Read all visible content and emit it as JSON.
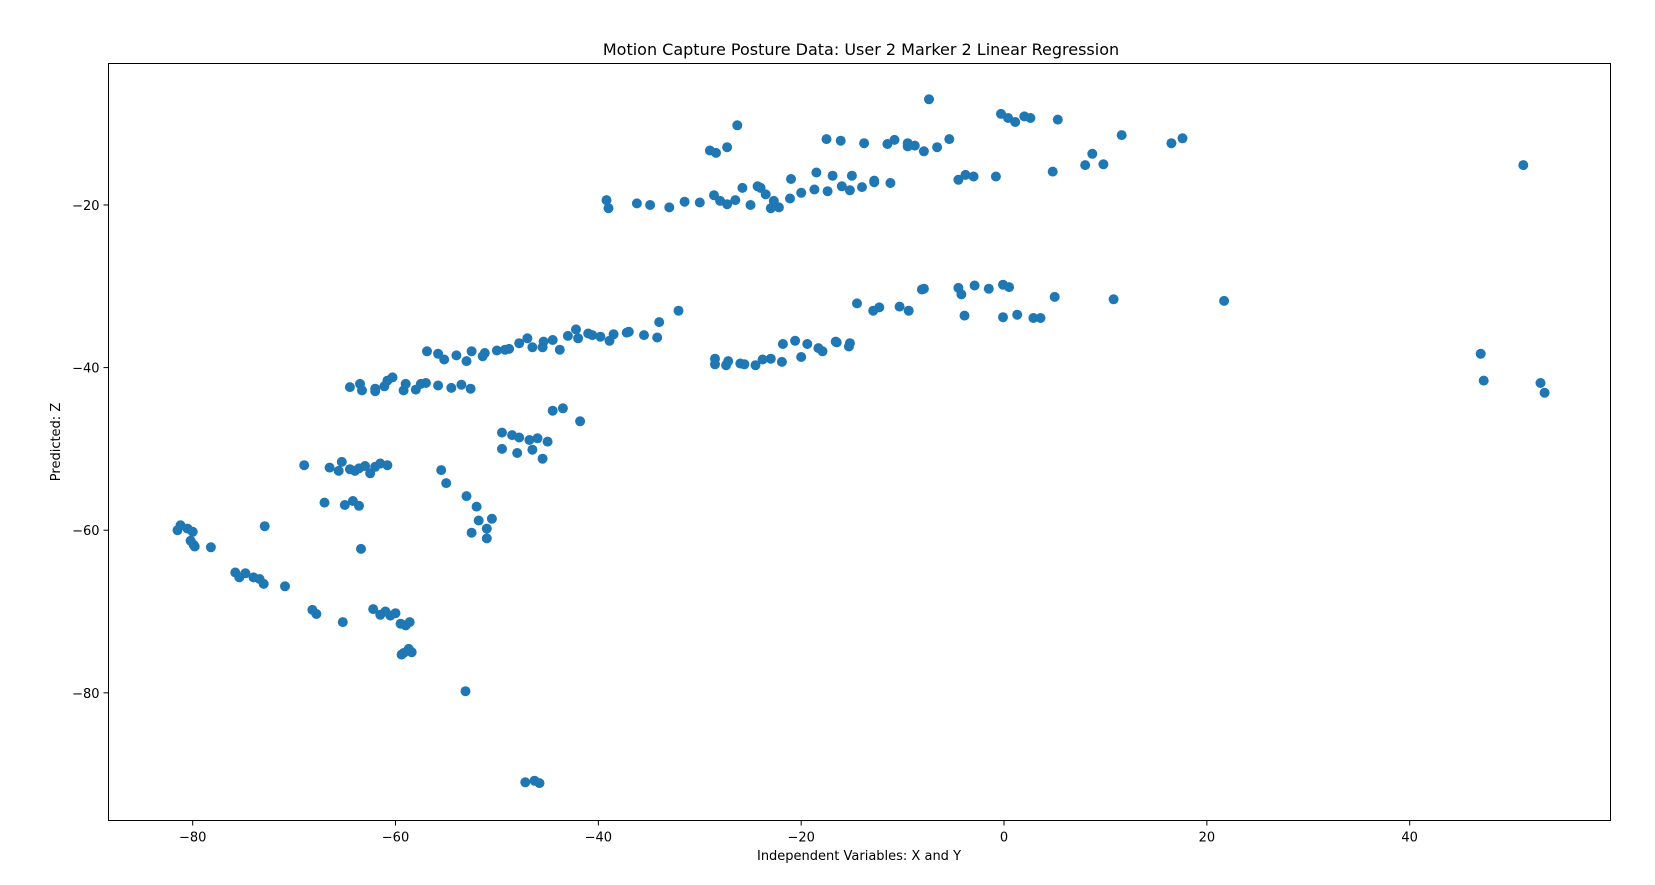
{
  "chart_data": {
    "type": "scatter",
    "title": "Motion Capture Posture Data: User 2 Marker 2 Linear Regression",
    "xlabel": "Independent Variables: X and Y",
    "ylabel": "Predicted: Z",
    "xlim": [
      -88.3,
      59.8
    ],
    "ylim": [
      -95.7,
      -2.6
    ],
    "xticks": [
      -80,
      -60,
      -40,
      -20,
      0,
      20,
      40
    ],
    "yticks": [
      -20,
      -40,
      -60,
      -80
    ],
    "xtick_labels": [
      "−80",
      "−60",
      "−40",
      "−20",
      "0",
      "20",
      "40"
    ],
    "ytick_labels": [
      "−20",
      "−40",
      "−60",
      "−80"
    ],
    "grid": false,
    "legend": false,
    "point_color": "#1f77b4",
    "series": [
      {
        "x": [
          -81.5,
          -81.2,
          -80.5,
          -80.0,
          -80.2,
          -79.8,
          -79.9,
          -78.2,
          -75.8,
          -75.4,
          -74.8,
          -74.0,
          -73.4,
          -73.0,
          -72.9,
          -70.9,
          -69.0,
          -68.2,
          -67.8,
          -67.0,
          -66.5,
          -65.6,
          -65.3,
          -64.5,
          -64.0,
          -63.6,
          -63.0,
          -62.5,
          -62.0,
          -61.5,
          -60.8,
          -63.4,
          -65.2,
          -65.0,
          -64.2,
          -63.6,
          -62.2,
          -61.5,
          -61.0,
          -60.5,
          -60.0,
          -59.5,
          -59.0,
          -58.6,
          -58.8,
          -59.2,
          -59.4,
          -58.7,
          -58.4,
          -64.5,
          -63.3,
          -62.0,
          -60.8,
          -59.2,
          -57.5,
          -55.8,
          -54.5,
          -53.5,
          -52.6,
          -63.5,
          -62.0,
          -61.1,
          -60.3,
          -59.0,
          -58.0,
          -57.0,
          -55.8,
          -55.2,
          -54.0,
          -52.5,
          -51.2,
          -50.0,
          -48.8,
          -47.8,
          -46.5,
          -45.4,
          -44.5,
          -43.0,
          -42.0,
          -41.0,
          -39.8,
          -38.5,
          -37.2,
          -35.5,
          -34.2,
          -56.9,
          -53.0,
          -51.4,
          -49.2,
          -47.0,
          -45.5,
          -43.8,
          -42.2,
          -40.6,
          -38.9,
          -37.0,
          -55.5,
          -55.0,
          -53.0,
          -52.0,
          -51.8,
          -51.0,
          -50.5,
          -52.5,
          -51.0,
          -49.5,
          -48.5,
          -47.8,
          -46.8,
          -46.0,
          -45.5,
          -45.0,
          -49.5,
          -48.0,
          -46.5,
          -44.5,
          -43.5,
          -41.8,
          -53.1,
          -47.2,
          -46.3,
          -45.8,
          -39.2,
          -39.0,
          -36.2,
          -34.9,
          -33.0,
          -31.5,
          -30.0,
          -28.6,
          -28.0,
          -27.3,
          -26.5,
          -25.8,
          -25.0,
          -24.3,
          -23.5,
          -23.0,
          -22.2,
          -21.0,
          -20.0,
          -18.5,
          -17.4,
          -16.0,
          -15.2,
          -14.0,
          -12.8,
          -29.0,
          -28.4,
          -27.3,
          -26.3,
          -17.5,
          -16.1,
          -15.0,
          -13.8,
          -11.5,
          -10.8,
          -9.5,
          -8.8,
          -7.9,
          -6.6,
          -5.4,
          -24.0,
          -22.7,
          -21.1,
          -18.7,
          -16.9,
          -12.8,
          -11.2,
          -9.5,
          -4.5,
          -3.8,
          -3.0,
          -0.8,
          -0.3,
          0.4,
          1.1,
          2.0,
          2.6,
          5.3,
          4.8,
          8.0,
          8.7,
          9.8,
          11.6,
          16.5,
          17.6,
          -34.0,
          -32.1,
          -28.5,
          -27.4,
          -26.0,
          -24.5,
          -23.0,
          -21.8,
          -20.6,
          -19.4,
          -17.9,
          -16.5,
          -15.2,
          -28.5,
          -27.2,
          -25.6,
          -23.8,
          -21.9,
          -20.0,
          -18.3,
          -16.6,
          -15.3,
          -14.5,
          -12.9,
          -12.3,
          -10.3,
          -9.4,
          -8.1,
          -7.9,
          -4.5,
          -4.2,
          -2.9,
          -1.5,
          -0.1,
          0.5,
          5.0,
          10.8,
          21.7,
          -3.9,
          -0.1,
          1.3,
          2.9,
          3.6,
          -7.4,
          47.0,
          47.3,
          52.9,
          53.3,
          51.2
        ],
        "y": [
          -60.0,
          -59.4,
          -59.8,
          -60.2,
          -61.3,
          -62.0,
          -61.8,
          -62.1,
          -65.2,
          -65.8,
          -65.3,
          -65.8,
          -66.0,
          -66.6,
          -59.5,
          -66.9,
          -52.0,
          -69.8,
          -70.3,
          -56.6,
          -52.3,
          -52.7,
          -51.6,
          -52.5,
          -52.7,
          -52.4,
          -52.1,
          -53.0,
          -52.2,
          -51.8,
          -52.0,
          -62.3,
          -71.3,
          -56.9,
          -56.4,
          -57.0,
          -69.7,
          -70.4,
          -70.0,
          -70.5,
          -70.2,
          -71.5,
          -71.7,
          -71.3,
          -74.8,
          -75.1,
          -75.3,
          -74.6,
          -75.0,
          -42.4,
          -42.8,
          -42.6,
          -41.6,
          -42.8,
          -42.0,
          -42.2,
          -42.5,
          -42.1,
          -42.6,
          -42.0,
          -42.9,
          -42.3,
          -41.2,
          -42.0,
          -42.7,
          -41.9,
          -38.3,
          -39.0,
          -38.5,
          -38.0,
          -38.2,
          -37.9,
          -37.7,
          -37.0,
          -37.5,
          -36.8,
          -36.6,
          -36.1,
          -36.4,
          -35.8,
          -36.2,
          -35.9,
          -35.7,
          -36.0,
          -36.3,
          -38.0,
          -39.2,
          -38.6,
          -37.8,
          -36.4,
          -37.5,
          -37.8,
          -35.3,
          -36.0,
          -36.7,
          -35.6,
          -52.6,
          -54.2,
          -55.8,
          -57.1,
          -58.8,
          -59.8,
          -58.6,
          -60.3,
          -61.0,
          -48.0,
          -48.3,
          -48.6,
          -48.9,
          -48.7,
          -51.2,
          -49.1,
          -50.0,
          -50.5,
          -50.1,
          -45.3,
          -45.0,
          -46.6,
          -79.8,
          -91.0,
          -90.8,
          -91.1,
          -19.4,
          -20.4,
          -19.8,
          -20.0,
          -20.3,
          -19.6,
          -19.7,
          -18.8,
          -19.5,
          -19.9,
          -19.4,
          -17.9,
          -20.0,
          -17.7,
          -18.7,
          -20.4,
          -20.3,
          -16.8,
          -18.5,
          -16.0,
          -18.3,
          -17.7,
          -18.2,
          -17.8,
          -17.2,
          -13.3,
          -13.6,
          -12.9,
          -10.2,
          -11.9,
          -12.1,
          -16.4,
          -12.4,
          -12.5,
          -12.0,
          -12.8,
          -12.7,
          -13.4,
          -12.9,
          -11.9,
          -17.9,
          -19.5,
          -19.2,
          -18.1,
          -16.4,
          -17.0,
          -17.3,
          -12.4,
          -16.9,
          -16.3,
          -16.5,
          -16.5,
          -8.8,
          -9.3,
          -9.8,
          -9.1,
          -9.3,
          -9.5,
          -15.9,
          -15.1,
          -13.7,
          -15.0,
          -11.4,
          -12.4,
          -11.8,
          -34.4,
          -33.0,
          -38.9,
          -39.7,
          -39.5,
          -39.7,
          -38.9,
          -37.1,
          -36.7,
          -37.1,
          -38.0,
          -36.9,
          -37.0,
          -39.6,
          -39.2,
          -39.6,
          -39.0,
          -39.3,
          -38.7,
          -37.6,
          -36.8,
          -37.4,
          -32.1,
          -33.0,
          -32.6,
          -32.5,
          -33.0,
          -30.4,
          -30.3,
          -30.2,
          -31.0,
          -29.9,
          -30.3,
          -29.8,
          -30.1,
          -31.3,
          -31.6,
          -31.8,
          -33.6,
          -33.8,
          -33.5,
          -33.9,
          -33.9,
          -7.0,
          -38.3,
          -41.6,
          -41.9,
          -43.1,
          -15.1
        ]
      }
    ]
  }
}
